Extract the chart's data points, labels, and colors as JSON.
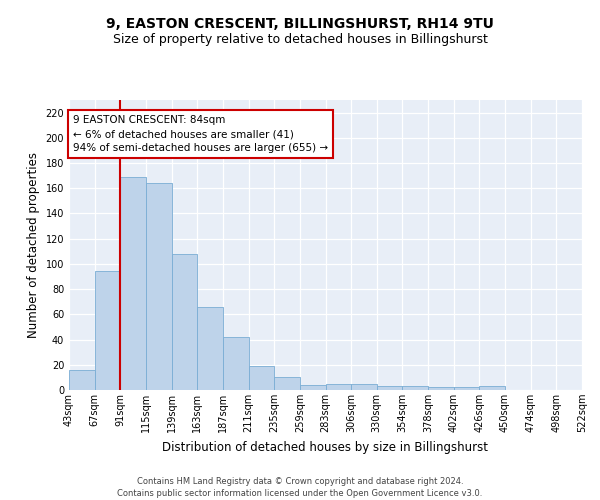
{
  "title": "9, EASTON CRESCENT, BILLINGSHURST, RH14 9TU",
  "subtitle": "Size of property relative to detached houses in Billingshurst",
  "xlabel": "Distribution of detached houses by size in Billingshurst",
  "ylabel": "Number of detached properties",
  "bar_values": [
    16,
    94,
    169,
    164,
    108,
    66,
    42,
    19,
    10,
    4,
    5,
    5,
    3,
    3,
    2,
    2,
    3,
    0,
    0,
    0
  ],
  "bar_labels": [
    "43sqm",
    "67sqm",
    "91sqm",
    "115sqm",
    "139sqm",
    "163sqm",
    "187sqm",
    "211sqm",
    "235sqm",
    "259sqm",
    "283sqm",
    "306sqm",
    "330sqm",
    "354sqm",
    "378sqm",
    "402sqm",
    "426sqm",
    "450sqm",
    "474sqm",
    "498sqm",
    "522sqm"
  ],
  "bar_color": "#bed3ea",
  "bar_edge_color": "#7aadd4",
  "vline_color": "#cc0000",
  "annotation_text": "9 EASTON CRESCENT: 84sqm\n← 6% of detached houses are smaller (41)\n94% of semi-detached houses are larger (655) →",
  "annotation_box_color": "white",
  "annotation_box_edge_color": "#cc0000",
  "ylim": [
    0,
    230
  ],
  "yticks": [
    0,
    20,
    40,
    60,
    80,
    100,
    120,
    140,
    160,
    180,
    200,
    220
  ],
  "background_color": "#e8eef7",
  "footer_text": "Contains HM Land Registry data © Crown copyright and database right 2024.\nContains public sector information licensed under the Open Government Licence v3.0.",
  "title_fontsize": 10,
  "subtitle_fontsize": 9,
  "xlabel_fontsize": 8.5,
  "ylabel_fontsize": 8.5,
  "tick_fontsize": 7,
  "annotation_fontsize": 7.5,
  "footer_fontsize": 6
}
